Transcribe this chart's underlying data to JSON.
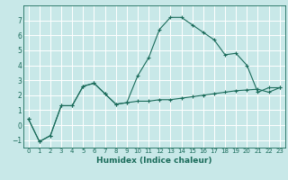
{
  "title": "",
  "xlabel": "Humidex (Indice chaleur)",
  "ylabel": "",
  "background_color": "#c8e8e8",
  "grid_color": "#ffffff",
  "line_color": "#1a6b5a",
  "xlim": [
    -0.5,
    23.5
  ],
  "ylim": [
    -1.5,
    8.0
  ],
  "yticks": [
    -1,
    0,
    1,
    2,
    3,
    4,
    5,
    6,
    7
  ],
  "xticks": [
    0,
    1,
    2,
    3,
    4,
    5,
    6,
    7,
    8,
    9,
    10,
    11,
    12,
    13,
    14,
    15,
    16,
    17,
    18,
    19,
    20,
    21,
    22,
    23
  ],
  "line1_x": [
    0,
    1,
    2,
    3,
    4,
    5,
    6,
    7,
    8,
    9,
    10,
    11,
    12,
    13,
    14,
    15,
    16,
    17,
    18,
    19,
    20,
    21,
    22,
    23
  ],
  "line1_y": [
    0.4,
    -1.1,
    -0.7,
    1.3,
    1.3,
    2.6,
    2.8,
    2.1,
    1.4,
    1.5,
    1.6,
    1.6,
    1.7,
    1.7,
    1.8,
    1.9,
    2.0,
    2.1,
    2.2,
    2.3,
    2.35,
    2.4,
    2.2,
    2.5
  ],
  "line2_x": [
    0,
    1,
    2,
    3,
    4,
    5,
    6,
    7,
    8,
    9,
    10,
    11,
    12,
    13,
    14,
    15,
    16,
    17,
    18,
    19,
    20,
    21,
    22,
    23
  ],
  "line2_y": [
    0.4,
    -1.1,
    -0.7,
    1.3,
    1.3,
    2.6,
    2.8,
    2.1,
    1.4,
    1.5,
    3.3,
    4.5,
    6.4,
    7.2,
    7.2,
    6.7,
    6.2,
    5.7,
    4.7,
    4.8,
    4.0,
    2.2,
    2.5,
    2.5
  ],
  "xlabel_fontsize": 6.5,
  "tick_fontsize_x": 5.0,
  "tick_fontsize_y": 5.5
}
